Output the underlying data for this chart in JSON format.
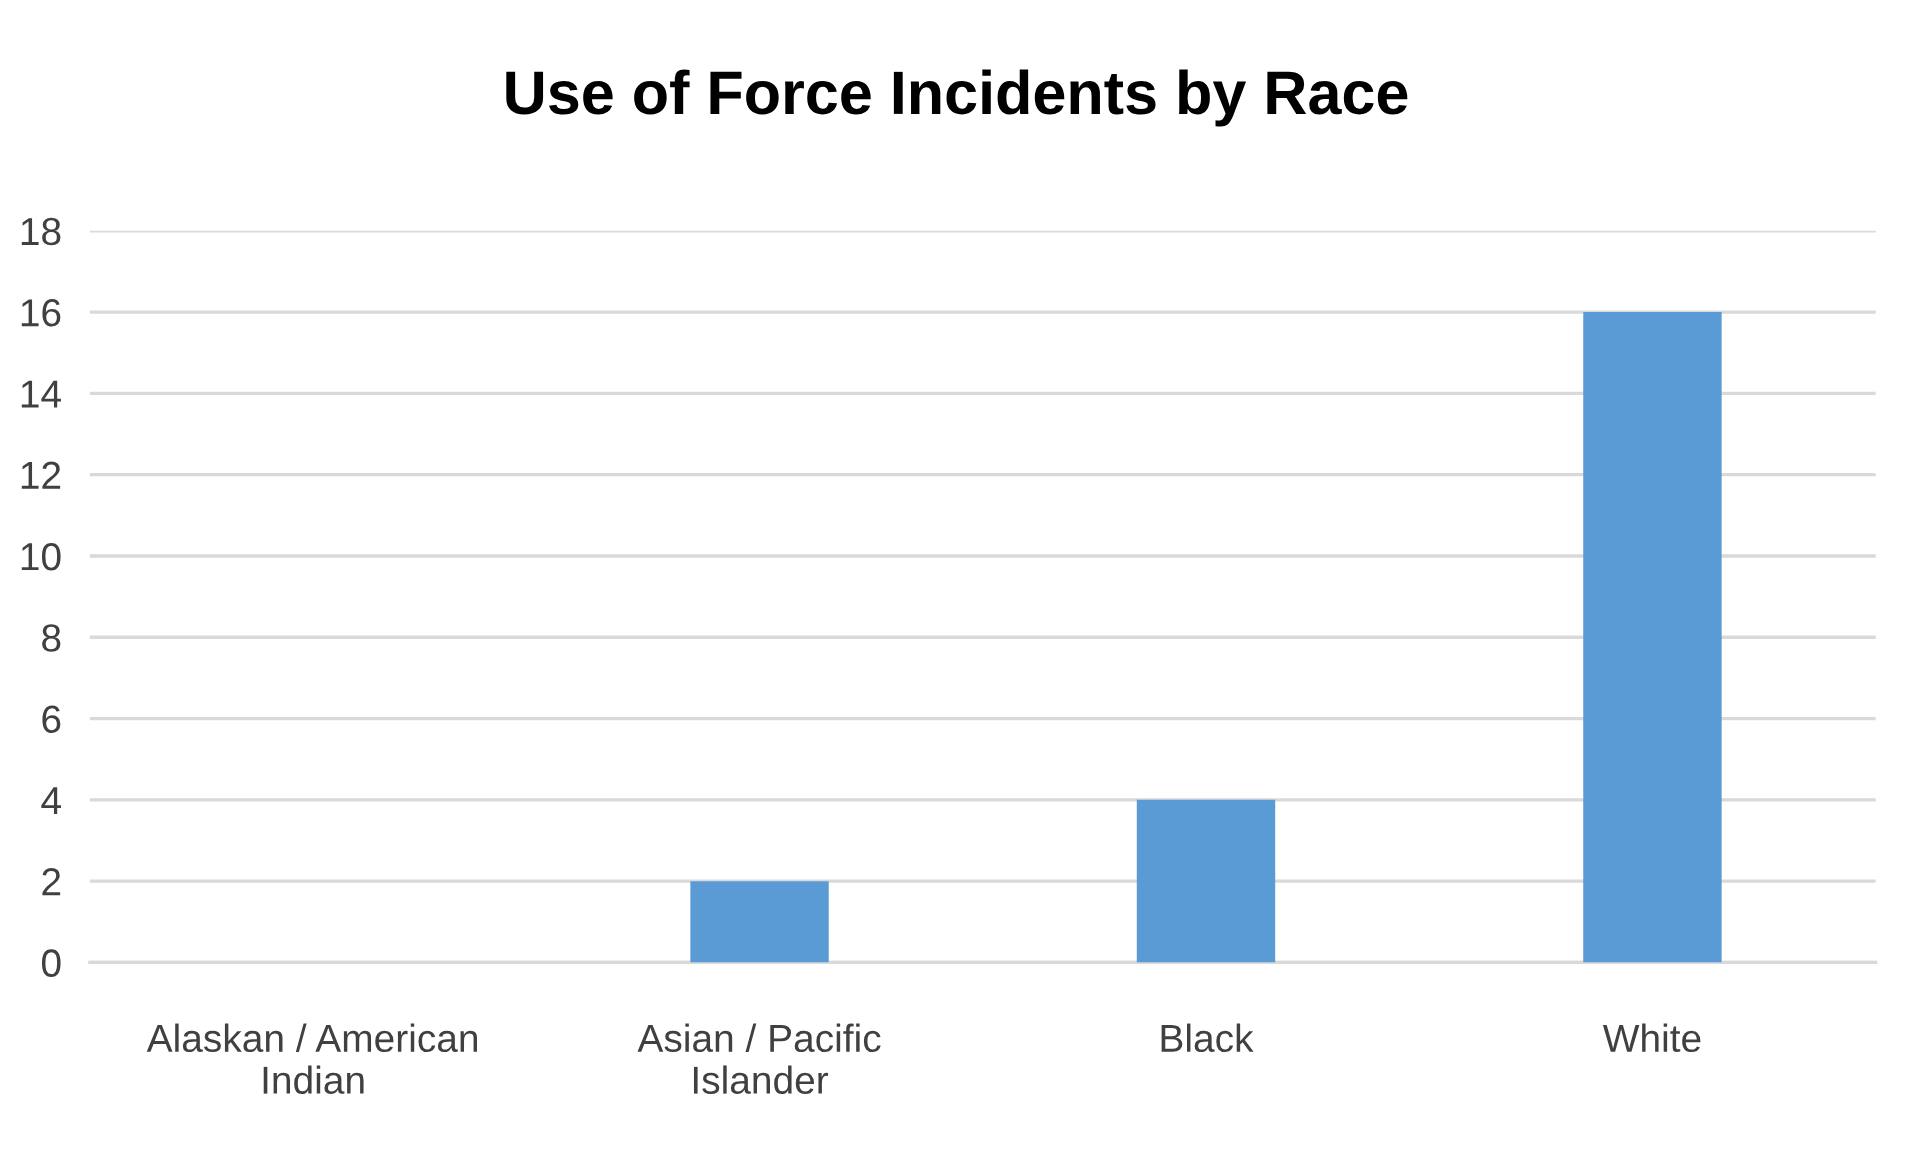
{
  "chart_data": {
    "type": "bar",
    "title": "Use of Force Incidents by Race",
    "categories": [
      "Alaskan / American\nIndian",
      "Asian / Pacific\nIslander",
      "Black",
      "White"
    ],
    "values": [
      0,
      2,
      4,
      16
    ],
    "color": "#5b9bd5",
    "ylim": [
      0,
      18
    ],
    "yticks": [
      0,
      2,
      4,
      6,
      8,
      10,
      12,
      14,
      16,
      18
    ],
    "grid": "y",
    "legend": false
  }
}
